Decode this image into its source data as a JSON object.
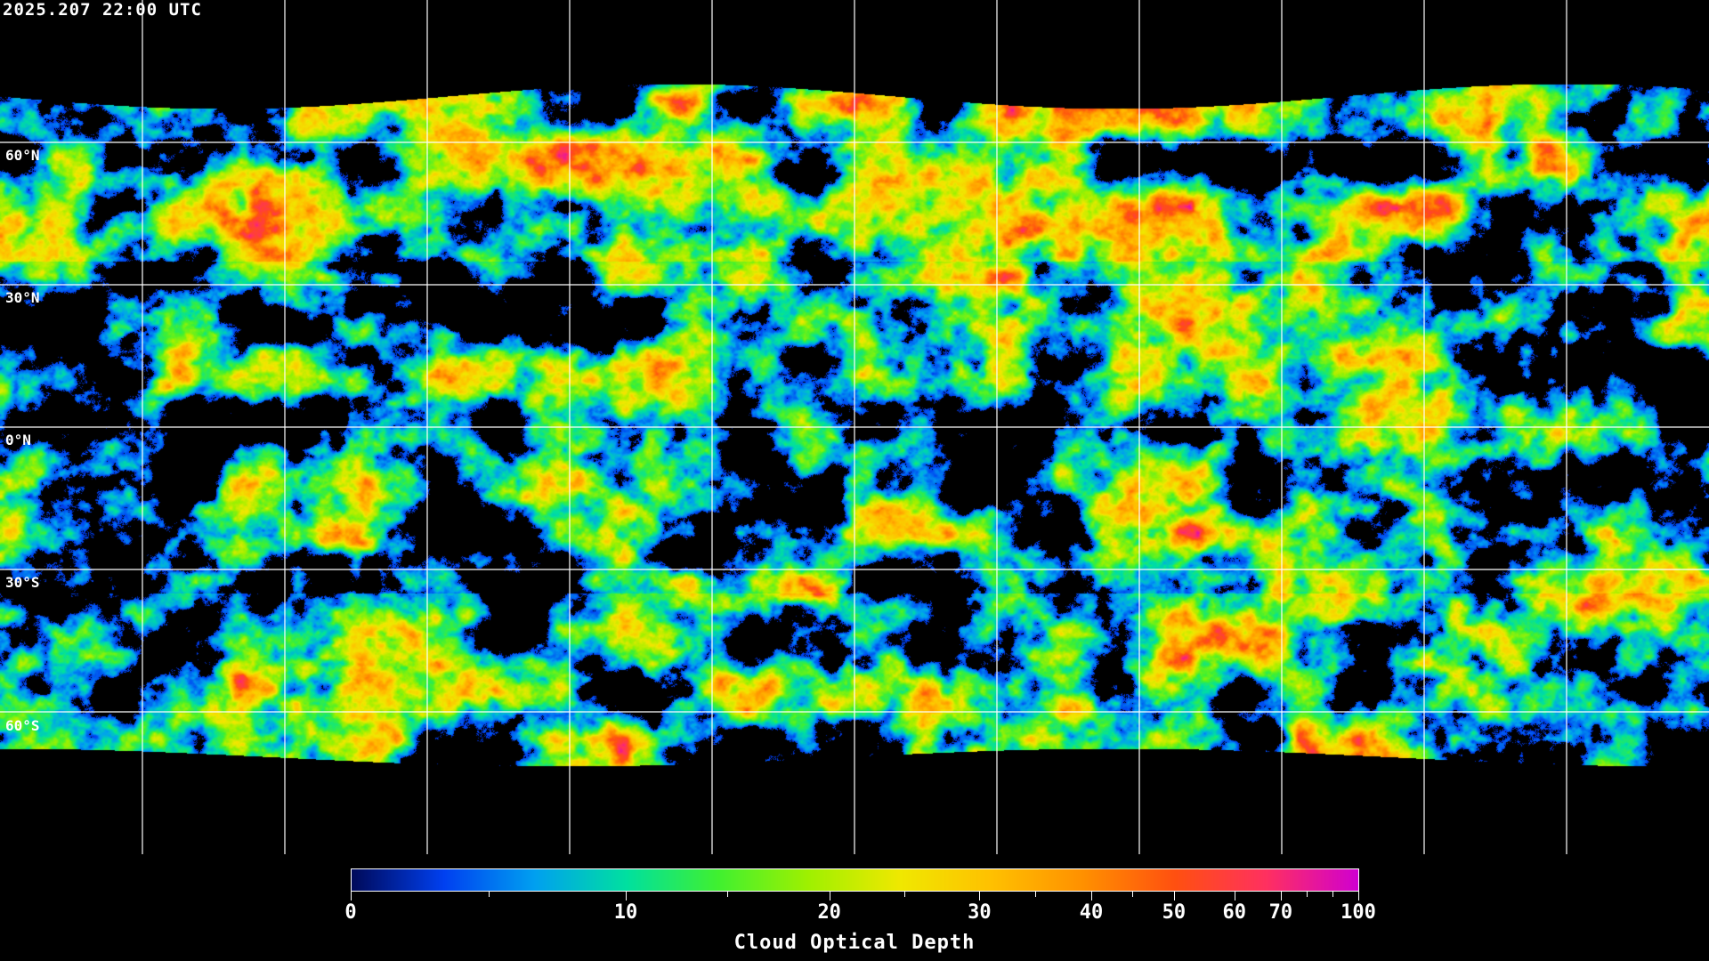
{
  "header": {
    "timestamp": "2025.207 22:00 UTC"
  },
  "map": {
    "projection": "equirectangular",
    "gridlines": {
      "longitude_step_deg": 30,
      "latitude_step_deg": 30
    },
    "lat_labels": [
      "60°N",
      "30°N",
      "0°N",
      "30°S",
      "60°S"
    ],
    "lat_values": [
      60,
      30,
      0,
      -30,
      -60
    ],
    "gridline_color": "#ffffff",
    "coastline_color": "#ffffff",
    "no_data_color": "#000000"
  },
  "colorbar": {
    "title": "Cloud Optical Depth",
    "range": [
      0,
      100
    ],
    "major_ticks": [
      {
        "value": 0,
        "label": "0",
        "pos": 0
      },
      {
        "value": 10,
        "label": "10",
        "pos": 0.273
      },
      {
        "value": 20,
        "label": "20",
        "pos": 0.475
      },
      {
        "value": 30,
        "label": "30",
        "pos": 0.624
      },
      {
        "value": 40,
        "label": "40",
        "pos": 0.735
      },
      {
        "value": 50,
        "label": "50",
        "pos": 0.817
      },
      {
        "value": 60,
        "label": "60",
        "pos": 0.877
      },
      {
        "value": 70,
        "label": "70",
        "pos": 0.923
      },
      {
        "value": 100,
        "label": "100",
        "pos": 1
      }
    ],
    "minor_tick_values": [
      5,
      15,
      25,
      35,
      45,
      80,
      90
    ],
    "colors": [
      "#000a5a",
      "#0040f0",
      "#00a0f0",
      "#00e0a0",
      "#40f030",
      "#a0f000",
      "#f0e800",
      "#ffc000",
      "#ff9000",
      "#ff5010",
      "#ff3060",
      "#d000d0"
    ]
  }
}
